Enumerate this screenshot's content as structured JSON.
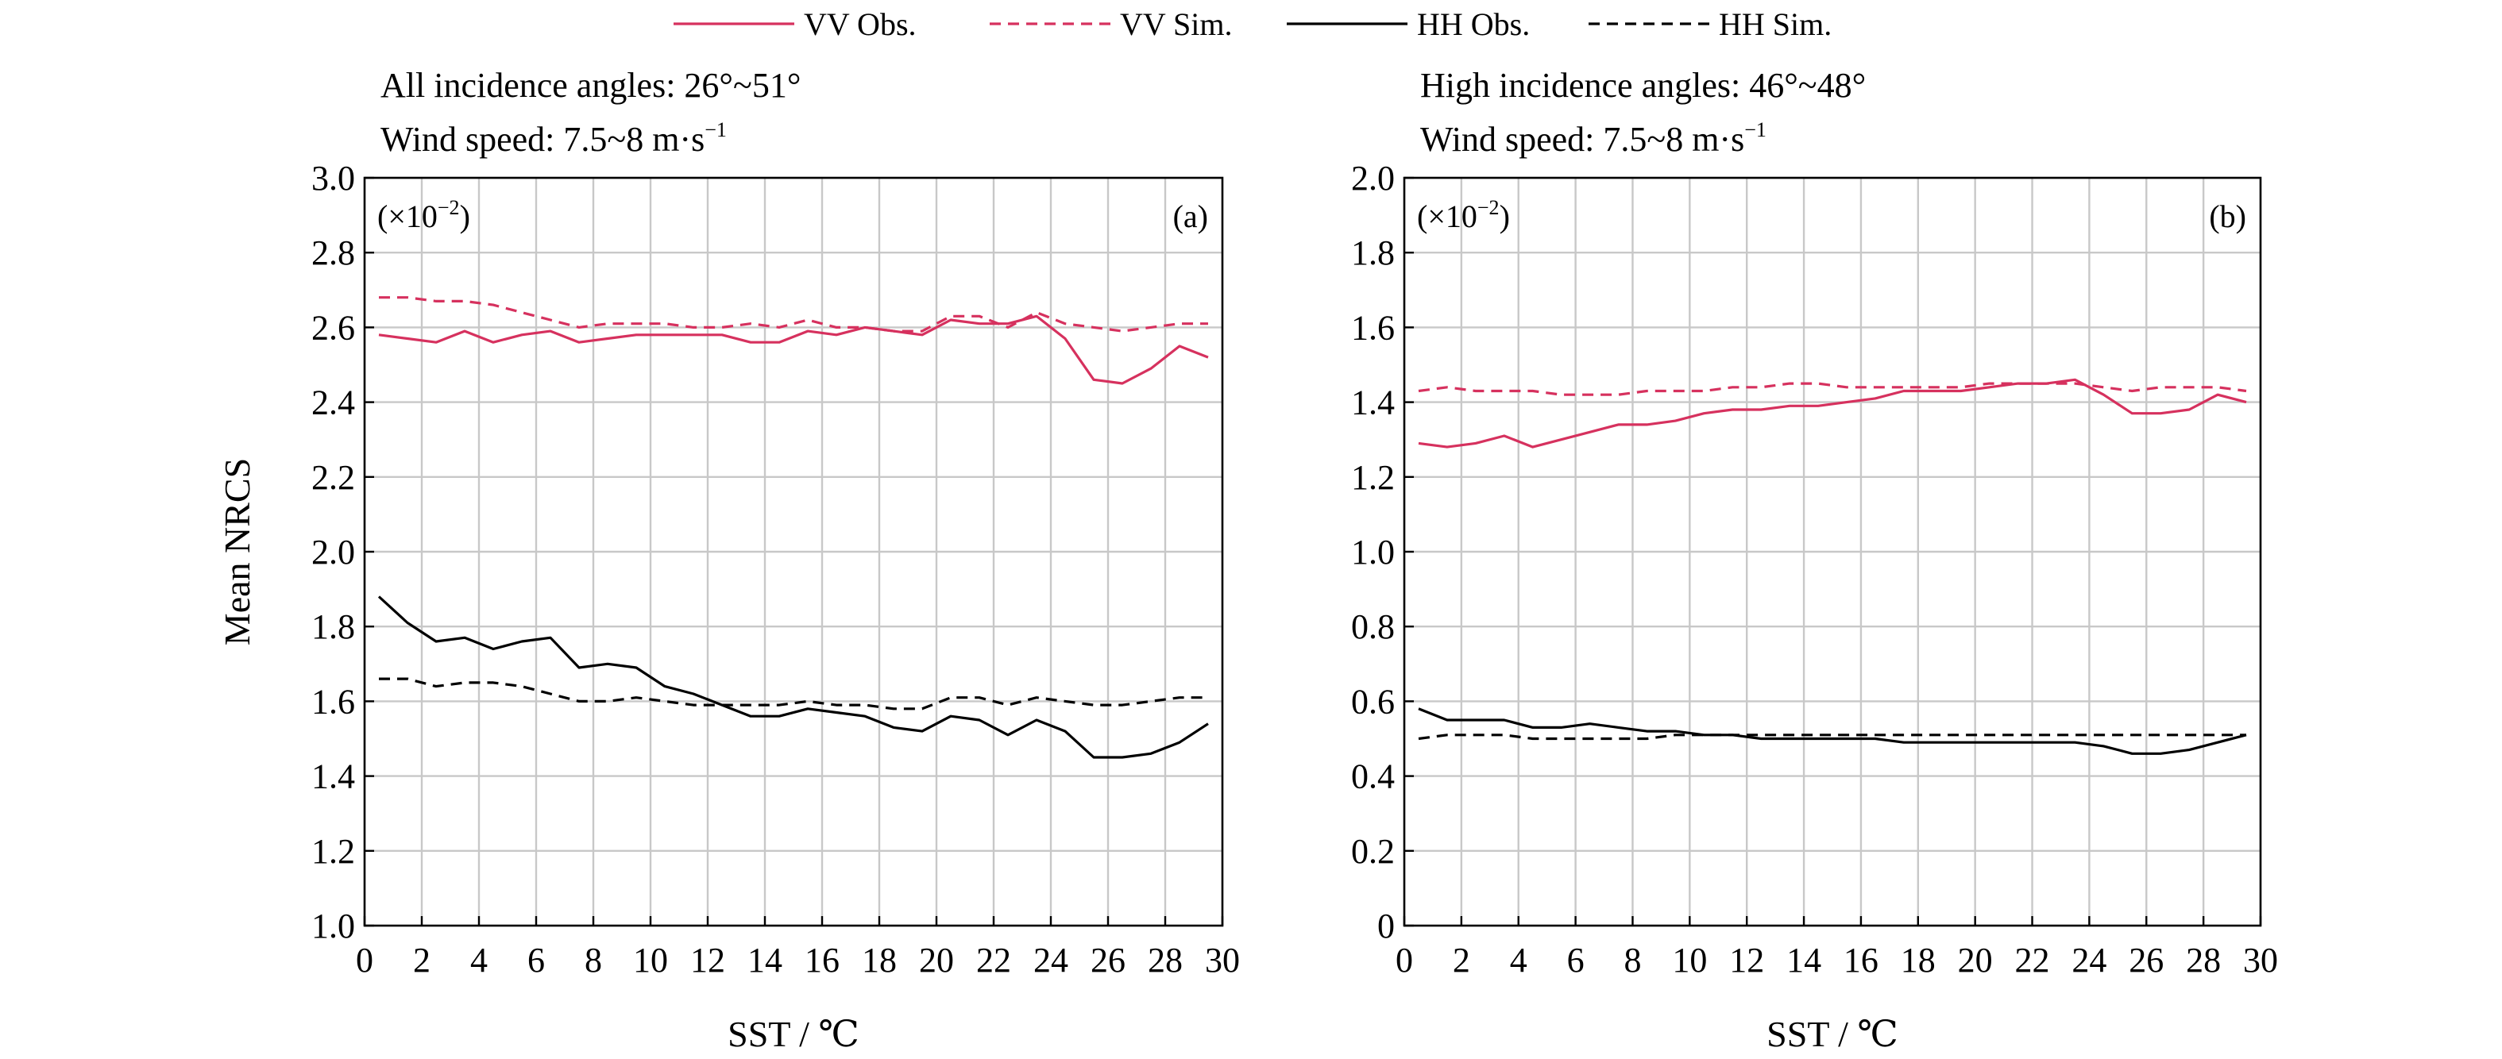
{
  "legend": [
    {
      "label": "VV Obs.",
      "color": "#d6315e",
      "dash": false
    },
    {
      "label": "VV Sim.",
      "color": "#d6315e",
      "dash": true
    },
    {
      "label": "HH Obs.",
      "color": "#000000",
      "dash": false
    },
    {
      "label": "HH Sim.",
      "color": "#000000",
      "dash": true
    }
  ],
  "colors": {
    "vv": "#d6315e",
    "hh": "#000000",
    "grid": "#c8c8c8",
    "axis": "#000000"
  },
  "chart_data": [
    {
      "type": "line",
      "panel_label": "(a)",
      "scale_text": "(×10",
      "scale_exp": "−2",
      "scale_close": ")",
      "info_lines": [
        "All incidence angles: 26°~51°",
        "Wind speed: 7.5~8 m·s",
        "−1"
      ],
      "xlabel": "SST / ℃",
      "ylabel": "Mean NRCS",
      "xlim": [
        0,
        30
      ],
      "ylim": [
        1.0,
        3.0
      ],
      "grid": true,
      "xticks": [
        "0",
        "2",
        "4",
        "6",
        "8",
        "10",
        "12",
        "14",
        "16",
        "18",
        "20",
        "22",
        "24",
        "26",
        "28",
        "30"
      ],
      "yticks": [
        "1.0",
        "1.2",
        "1.4",
        "1.6",
        "1.8",
        "2.0",
        "2.2",
        "2.4",
        "2.6",
        "2.8",
        "3.0"
      ],
      "x": [
        0.5,
        1.5,
        2.5,
        3.5,
        4.5,
        5.5,
        6.5,
        7.5,
        8.5,
        9.5,
        10.5,
        11.5,
        12.5,
        13.5,
        14.5,
        15.5,
        16.5,
        17.5,
        18.5,
        19.5,
        20.5,
        21.5,
        22.5,
        23.5,
        24.5,
        25.5,
        26.5,
        27.5,
        28.5,
        29.5
      ],
      "series": [
        {
          "name": "VV Obs.",
          "pol": "vv",
          "dash": false,
          "values": [
            2.58,
            2.57,
            2.56,
            2.59,
            2.56,
            2.58,
            2.59,
            2.56,
            2.57,
            2.58,
            2.58,
            2.58,
            2.58,
            2.56,
            2.56,
            2.59,
            2.58,
            2.6,
            2.59,
            2.58,
            2.62,
            2.61,
            2.61,
            2.63,
            2.57,
            2.46,
            2.45,
            2.49,
            2.55,
            2.52
          ]
        },
        {
          "name": "VV Sim.",
          "pol": "vv",
          "dash": true,
          "values": [
            2.68,
            2.68,
            2.67,
            2.67,
            2.66,
            2.64,
            2.62,
            2.6,
            2.61,
            2.61,
            2.61,
            2.6,
            2.6,
            2.61,
            2.6,
            2.62,
            2.6,
            2.6,
            2.59,
            2.59,
            2.63,
            2.63,
            2.6,
            2.64,
            2.61,
            2.6,
            2.59,
            2.6,
            2.61,
            2.61
          ]
        },
        {
          "name": "HH Obs.",
          "pol": "hh",
          "dash": false,
          "values": [
            1.88,
            1.81,
            1.76,
            1.77,
            1.74,
            1.76,
            1.77,
            1.69,
            1.7,
            1.69,
            1.64,
            1.62,
            1.59,
            1.56,
            1.56,
            1.58,
            1.57,
            1.56,
            1.53,
            1.52,
            1.56,
            1.55,
            1.51,
            1.55,
            1.52,
            1.45,
            1.45,
            1.46,
            1.49,
            1.54
          ]
        },
        {
          "name": "HH Sim.",
          "pol": "hh",
          "dash": true,
          "values": [
            1.66,
            1.66,
            1.64,
            1.65,
            1.65,
            1.64,
            1.62,
            1.6,
            1.6,
            1.61,
            1.6,
            1.59,
            1.59,
            1.59,
            1.59,
            1.6,
            1.59,
            1.59,
            1.58,
            1.58,
            1.61,
            1.61,
            1.59,
            1.61,
            1.6,
            1.59,
            1.59,
            1.6,
            1.61,
            1.61
          ]
        }
      ]
    },
    {
      "type": "line",
      "panel_label": "(b)",
      "scale_text": "(×10",
      "scale_exp": "−2",
      "scale_close": ")",
      "info_lines": [
        "High incidence angles: 46°~48°",
        "Wind speed: 7.5~8 m·s",
        "−1"
      ],
      "xlabel": "SST / ℃",
      "ylabel": "",
      "xlim": [
        0,
        30
      ],
      "ylim": [
        0,
        2.0
      ],
      "grid": true,
      "xticks": [
        "0",
        "2",
        "4",
        "6",
        "8",
        "10",
        "12",
        "14",
        "16",
        "18",
        "20",
        "22",
        "24",
        "26",
        "28",
        "30"
      ],
      "yticks": [
        "0",
        "0.2",
        "0.4",
        "0.6",
        "0.8",
        "1.0",
        "1.2",
        "1.4",
        "1.6",
        "1.8",
        "2.0"
      ],
      "x": [
        0.5,
        1.5,
        2.5,
        3.5,
        4.5,
        5.5,
        6.5,
        7.5,
        8.5,
        9.5,
        10.5,
        11.5,
        12.5,
        13.5,
        14.5,
        15.5,
        16.5,
        17.5,
        18.5,
        19.5,
        20.5,
        21.5,
        22.5,
        23.5,
        24.5,
        25.5,
        26.5,
        27.5,
        28.5,
        29.5
      ],
      "series": [
        {
          "name": "VV Obs.",
          "pol": "vv",
          "dash": false,
          "values": [
            1.29,
            1.28,
            1.29,
            1.31,
            1.28,
            1.3,
            1.32,
            1.34,
            1.34,
            1.35,
            1.37,
            1.38,
            1.38,
            1.39,
            1.39,
            1.4,
            1.41,
            1.43,
            1.43,
            1.43,
            1.44,
            1.45,
            1.45,
            1.46,
            1.42,
            1.37,
            1.37,
            1.38,
            1.42,
            1.4
          ]
        },
        {
          "name": "VV Sim.",
          "pol": "vv",
          "dash": true,
          "values": [
            1.43,
            1.44,
            1.43,
            1.43,
            1.43,
            1.42,
            1.42,
            1.42,
            1.43,
            1.43,
            1.43,
            1.44,
            1.44,
            1.45,
            1.45,
            1.44,
            1.44,
            1.44,
            1.44,
            1.44,
            1.45,
            1.45,
            1.45,
            1.45,
            1.44,
            1.43,
            1.44,
            1.44,
            1.44,
            1.43
          ]
        },
        {
          "name": "HH Obs.",
          "pol": "hh",
          "dash": false,
          "values": [
            0.58,
            0.55,
            0.55,
            0.55,
            0.53,
            0.53,
            0.54,
            0.53,
            0.52,
            0.52,
            0.51,
            0.51,
            0.5,
            0.5,
            0.5,
            0.5,
            0.5,
            0.49,
            0.49,
            0.49,
            0.49,
            0.49,
            0.49,
            0.49,
            0.48,
            0.46,
            0.46,
            0.47,
            0.49,
            0.51
          ]
        },
        {
          "name": "HH Sim.",
          "pol": "hh",
          "dash": true,
          "values": [
            0.5,
            0.51,
            0.51,
            0.51,
            0.5,
            0.5,
            0.5,
            0.5,
            0.5,
            0.51,
            0.51,
            0.51,
            0.51,
            0.51,
            0.51,
            0.51,
            0.51,
            0.51,
            0.51,
            0.51,
            0.51,
            0.51,
            0.51,
            0.51,
            0.51,
            0.51,
            0.51,
            0.51,
            0.51,
            0.51
          ]
        }
      ]
    }
  ]
}
